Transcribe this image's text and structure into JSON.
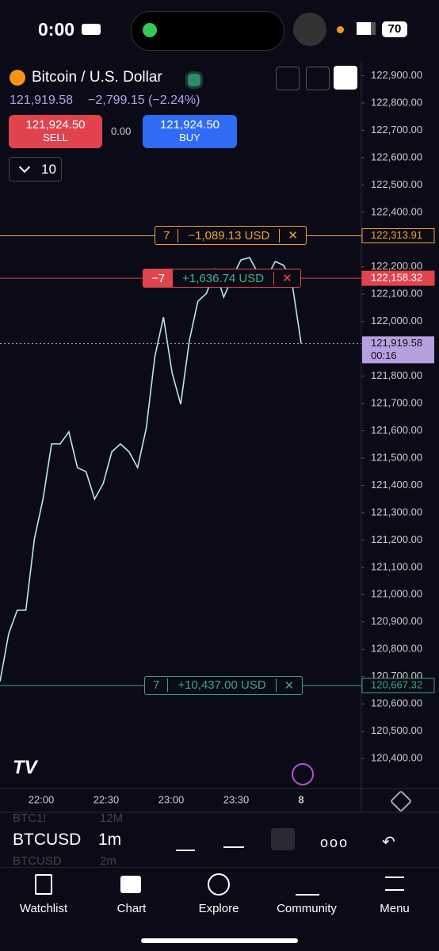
{
  "status": {
    "time": "0:00",
    "battery": "70"
  },
  "header": {
    "symbol": "Bitcoin / U.S. Dollar",
    "price": "121,919.58",
    "change": "−2,799.15 (−2.24%)",
    "sell_price": "121,924.50",
    "sell": "SELL",
    "spread": "0.00",
    "buy_price": "121,924.50",
    "buy": "BUY",
    "quantity": "10"
  },
  "chart": {
    "ylim": [
      120290,
      122945
    ],
    "yticks": [
      {
        "value": 122900,
        "label": "122,900.00"
      },
      {
        "value": 122800,
        "label": "122,800.00"
      },
      {
        "value": 122700,
        "label": "122,700.00"
      },
      {
        "value": 122600,
        "label": "122,600.00"
      },
      {
        "value": 122500,
        "label": "122,500.00"
      },
      {
        "value": 122400,
        "label": "122,400.00"
      },
      {
        "value": 122300,
        "label": "122,300.00"
      },
      {
        "value": 122200,
        "label": "122,200.00"
      },
      {
        "value": 122100,
        "label": "122,100.00"
      },
      {
        "value": 122000,
        "label": "122,000.00"
      },
      {
        "value": 121900,
        "label": "121,900.00"
      },
      {
        "value": 121800,
        "label": "121,800.00"
      },
      {
        "value": 121700,
        "label": "121,700.00"
      },
      {
        "value": 121600,
        "label": "121,600.00"
      },
      {
        "value": 121500,
        "label": "121,500.00"
      },
      {
        "value": 121400,
        "label": "121,400.00"
      },
      {
        "value": 121300,
        "label": "121,300.00"
      },
      {
        "value": 121200,
        "label": "121,200.00"
      },
      {
        "value": 121100,
        "label": "121,100.00"
      },
      {
        "value": 121000,
        "label": "121,000.00"
      },
      {
        "value": 120900,
        "label": "120,900.00"
      },
      {
        "value": 120800,
        "label": "120,800.00"
      },
      {
        "value": 120700,
        "label": "120,700.00"
      },
      {
        "value": 120600,
        "label": "120,600.00"
      },
      {
        "value": 120500,
        "label": "120,500.00"
      },
      {
        "value": 120400,
        "label": "120,400.00"
      }
    ],
    "xticks": [
      "22:00",
      "22:30",
      "23:00",
      "23:30",
      "8"
    ],
    "prices": [
      120682,
      120856,
      120943,
      120943,
      121204,
      121350,
      121552,
      121552,
      121596,
      121465,
      121450,
      121350,
      121407,
      121523,
      121552,
      121523,
      121465,
      121610,
      121871,
      122016,
      121813,
      121697,
      121929,
      122074,
      122103,
      122190,
      122089,
      122161,
      122225,
      122234,
      122176,
      122161,
      122220,
      122205,
      122132,
      121919.58
    ],
    "current": {
      "value": 121919.58,
      "label": "121,919.58"
    },
    "timer": "00:16",
    "orders": [
      {
        "qty": "7",
        "pnl": "−1,089.13 USD",
        "price": {
          "value": 122313.91,
          "label": "122,313.91"
        }
      },
      {
        "qty": "−7",
        "pnl": "+1,636.74 USD",
        "price": {
          "value": 122158.32,
          "label": "122,158.32"
        }
      },
      {
        "qty": "7",
        "pnl": "+10,437.00 USD",
        "price": {
          "value": 120667.32,
          "label": "120,667.32"
        }
      }
    ]
  },
  "toolbar": {
    "prev_symbol": "BTC1!",
    "prev_interval": "12M",
    "symbol": "BTCUSD",
    "interval": "1m",
    "next_symbol": "BTCUSD",
    "next_interval": "2m"
  },
  "nav": [
    "Watchlist",
    "Chart",
    "Explore",
    "Community",
    "Menu"
  ]
}
